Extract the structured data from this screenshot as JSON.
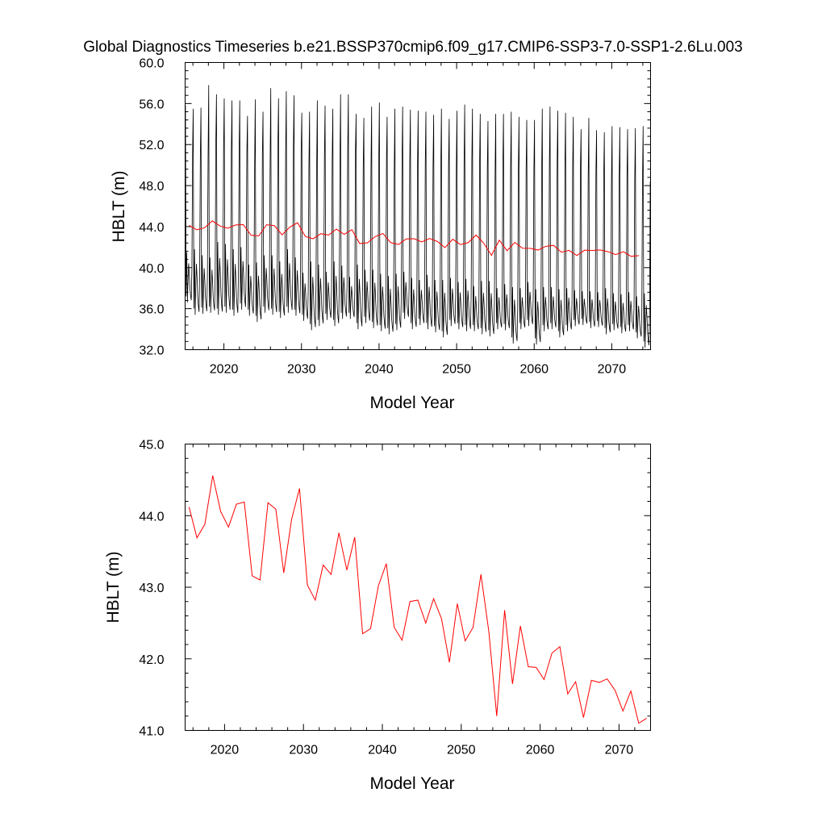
{
  "figure": {
    "title": "Global Diagnostics Timeseries b.e21.BSSP370cmip6.f09_g17.CMIP6-SSP3-7.0-SSP1-2.6Lu.003"
  },
  "colors": {
    "monthly": "#000000",
    "annual": "#ff0000"
  },
  "chart_data": [
    {
      "type": "line",
      "title": "Global Diagnostics Timeseries b.e21.BSSP370cmip6.f09_g17.CMIP6-SSP3-7.0-SSP1-2.6Lu.003",
      "xlabel": "Model Year",
      "ylabel": "HBLT (m)",
      "xlim": [
        2015,
        2075
      ],
      "ylim": [
        32.0,
        60.0
      ],
      "x_ticks": [
        "2020",
        "2030",
        "2040",
        "2050",
        "2060",
        "2070"
      ],
      "y_ticks": [
        "32.0",
        "36.0",
        "40.0",
        "44.0",
        "48.0",
        "52.0",
        "56.0",
        "60.0"
      ],
      "grid": false,
      "series": [
        {
          "kind": "monthly",
          "start_year": 2015,
          "annual_max": [
            55.8,
            55.5,
            55.6,
            57.8,
            56.9,
            56.5,
            56.3,
            56.3,
            54.8,
            56.4,
            55.2,
            57.5,
            56.5,
            57.2,
            56.8,
            55.1,
            55.2,
            56.3,
            55.8,
            55.5,
            56.9,
            56.9,
            55.0,
            54.6,
            55.7,
            56.1,
            54.7,
            55.5,
            55.7,
            55.4,
            55.3,
            55.2,
            54.9,
            55.5,
            54.5,
            55.3,
            55.9,
            55.5,
            55.0,
            54.3,
            55.0,
            55.0,
            55.2,
            54.7,
            54.4,
            54.4,
            55.5,
            55.7,
            55.3,
            55.1,
            54.7,
            53.5,
            54.6,
            53.4,
            53.2,
            53.8,
            53.7,
            53.5,
            53.6,
            53.8
          ],
          "annual_min": [
            36.6,
            35.4,
            35.5,
            35.6,
            35.4,
            35.6,
            35.3,
            35.9,
            35.3,
            34.7,
            35.6,
            35.4,
            35.1,
            35.6,
            35.3,
            34.8,
            33.9,
            34.3,
            34.9,
            34.3,
            35.0,
            35.0,
            34.0,
            34.6,
            34.1,
            33.8,
            33.5,
            33.9,
            35.0,
            34.0,
            34.4,
            34.0,
            33.7,
            33.2,
            34.3,
            34.0,
            33.8,
            33.8,
            33.5,
            33.3,
            34.0,
            33.9,
            32.6,
            34.0,
            34.3,
            32.5,
            33.8,
            34.0,
            33.2,
            33.8,
            34.3,
            34.4,
            34.1,
            34.2,
            33.5,
            33.9,
            33.6,
            33.8,
            33.1,
            32.2
          ],
          "annual_secondary_peak": [
            41.5,
            41.8,
            41.2,
            41.0,
            42.5,
            42.3,
            41.8,
            42.0,
            40.3,
            40.5,
            41.2,
            41.2,
            40.6,
            41.8,
            41.0,
            39.5,
            40.6,
            40.3,
            39.6,
            40.6,
            40.2,
            39.1,
            40.3,
            39.8,
            39.8,
            39.4,
            39.2,
            39.4,
            39.6,
            39.0,
            38.8,
            39.3,
            38.8,
            38.8,
            39.0,
            38.6,
            38.9,
            38.2,
            38.7,
            38.7,
            38.0,
            38.4,
            38.1,
            38.0,
            38.6,
            37.9,
            38.1,
            38.1,
            37.9,
            38.0,
            37.8,
            37.7,
            37.7,
            37.6,
            38.0,
            37.5,
            37.4,
            37.6,
            37.2,
            37.5
          ]
        },
        {
          "kind": "annual",
          "x": [
            2015.5,
            2016.5,
            2017.5,
            2018.5,
            2019.5,
            2020.5,
            2021.5,
            2022.5,
            2023.5,
            2024.5,
            2025.5,
            2026.5,
            2027.5,
            2028.5,
            2029.5,
            2030.5,
            2031.5,
            2032.5,
            2033.5,
            2034.5,
            2035.5,
            2036.5,
            2037.5,
            2038.5,
            2039.5,
            2040.5,
            2041.5,
            2042.5,
            2043.5,
            2044.5,
            2045.5,
            2046.5,
            2047.5,
            2048.5,
            2049.5,
            2050.5,
            2051.5,
            2052.5,
            2053.5,
            2054.5,
            2055.5,
            2056.5,
            2057.5,
            2058.5,
            2059.5,
            2060.5,
            2061.5,
            2062.5,
            2063.5,
            2064.5,
            2065.5,
            2066.5,
            2067.5,
            2068.5,
            2069.5,
            2070.5,
            2071.5,
            2072.5,
            2073.5
          ],
          "values": [
            44.12,
            43.69,
            43.88,
            44.56,
            44.06,
            43.84,
            44.16,
            44.19,
            43.16,
            43.1,
            44.18,
            44.09,
            43.2,
            43.95,
            44.38,
            43.03,
            42.82,
            43.31,
            43.18,
            43.76,
            43.24,
            43.7,
            42.35,
            42.42,
            43.02,
            43.33,
            42.44,
            42.26,
            42.8,
            42.82,
            42.5,
            42.84,
            42.56,
            41.95,
            42.77,
            42.25,
            42.44,
            43.18,
            42.38,
            41.2,
            42.68,
            41.65,
            42.46,
            41.89,
            41.88,
            41.71,
            42.08,
            42.17,
            41.51,
            41.68,
            41.18,
            41.7,
            41.67,
            41.72,
            41.56,
            41.27,
            41.55,
            41.1,
            41.17
          ]
        }
      ]
    },
    {
      "type": "line",
      "title": "",
      "xlabel": "Model Year",
      "ylabel": "HBLT (m)",
      "xlim": [
        2015,
        2074
      ],
      "ylim": [
        41.0,
        45.0
      ],
      "x_ticks": [
        "2020",
        "2030",
        "2040",
        "2050",
        "2060",
        "2070"
      ],
      "y_ticks": [
        "41.0",
        "42.0",
        "43.0",
        "44.0",
        "45.0"
      ],
      "grid": false,
      "series": [
        {
          "kind": "annual",
          "x": [
            2015.5,
            2016.5,
            2017.5,
            2018.5,
            2019.5,
            2020.5,
            2021.5,
            2022.5,
            2023.5,
            2024.5,
            2025.5,
            2026.5,
            2027.5,
            2028.5,
            2029.5,
            2030.5,
            2031.5,
            2032.5,
            2033.5,
            2034.5,
            2035.5,
            2036.5,
            2037.5,
            2038.5,
            2039.5,
            2040.5,
            2041.5,
            2042.5,
            2043.5,
            2044.5,
            2045.5,
            2046.5,
            2047.5,
            2048.5,
            2049.5,
            2050.5,
            2051.5,
            2052.5,
            2053.5,
            2054.5,
            2055.5,
            2056.5,
            2057.5,
            2058.5,
            2059.5,
            2060.5,
            2061.5,
            2062.5,
            2063.5,
            2064.5,
            2065.5,
            2066.5,
            2067.5,
            2068.5,
            2069.5,
            2070.5,
            2071.5,
            2072.5,
            2073.5
          ],
          "values": [
            44.12,
            43.69,
            43.88,
            44.56,
            44.06,
            43.84,
            44.16,
            44.19,
            43.16,
            43.1,
            44.18,
            44.09,
            43.2,
            43.95,
            44.38,
            43.03,
            42.82,
            43.31,
            43.18,
            43.76,
            43.24,
            43.7,
            42.35,
            42.42,
            43.02,
            43.33,
            42.44,
            42.26,
            42.8,
            42.82,
            42.5,
            42.84,
            42.56,
            41.95,
            42.77,
            42.25,
            42.44,
            43.18,
            42.38,
            41.2,
            42.68,
            41.65,
            42.46,
            41.89,
            41.88,
            41.71,
            42.08,
            42.17,
            41.51,
            41.68,
            41.18,
            41.7,
            41.67,
            41.72,
            41.56,
            41.27,
            41.55,
            41.1,
            41.17
          ]
        }
      ]
    }
  ]
}
